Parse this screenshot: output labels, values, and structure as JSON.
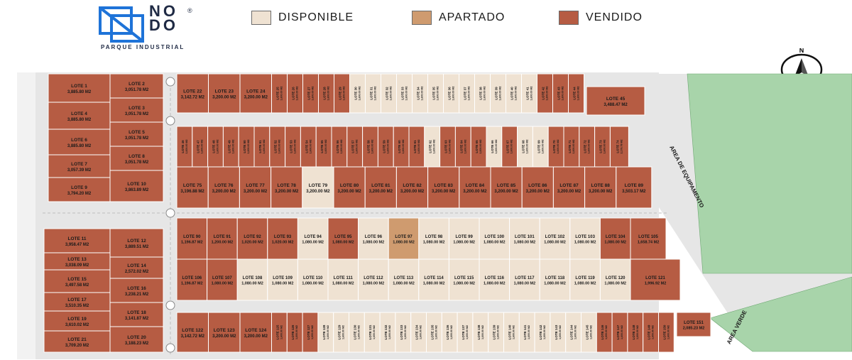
{
  "brand": {
    "name_line1": "NO",
    "name_line2": "DO",
    "registered": "®",
    "subtitle": "PARQUE INDUSTRIAL"
  },
  "legend": [
    {
      "label": "DISPONIBLE",
      "color": "#efe2d2"
    },
    {
      "label": "APARTADO",
      "color": "#cf9b6f"
    },
    {
      "label": "VENDIDO",
      "color": "#b65c43"
    }
  ],
  "compass": {
    "letter": "N"
  },
  "colors": {
    "sold": "#b65c43",
    "available": "#efe2d2",
    "reserved": "#cf9b6f",
    "green": "#a8d4aa",
    "road": "#e6e6e6"
  },
  "areas": {
    "equipamento": "AREA DE EQUIPAMENTO",
    "verde": "AREA VERDE"
  },
  "lots": {
    "left_top": [
      {
        "label": "LOTE 1",
        "area": "3,885.80 M2",
        "status": "sold"
      },
      {
        "label": "LOTE 2",
        "area": "3,051.78 M2",
        "status": "sold"
      },
      {
        "label": "LOTE 3",
        "area": "3,051.78 M2",
        "status": "sold"
      },
      {
        "label": "LOTE 4",
        "area": "3,885.80 M2",
        "status": "sold"
      },
      {
        "label": "LOTE 5",
        "area": "3,051.78 M2",
        "status": "sold"
      },
      {
        "label": "LOTE 6",
        "area": "3,885.80 M2",
        "status": "sold"
      },
      {
        "label": "LOTE 7",
        "area": "3,057.39 M2",
        "status": "sold"
      },
      {
        "label": "LOTE 8",
        "area": "3,051.78 M2",
        "status": "sold"
      },
      {
        "label": "LOTE 9",
        "area": "3,794.20 M2",
        "status": "sold"
      },
      {
        "label": "LOTE 10",
        "area": "3,863.89 M2",
        "status": "sold"
      }
    ],
    "left_bottom": [
      {
        "label": "LOTE 11",
        "area": "3,958.47 M2",
        "status": "sold"
      },
      {
        "label": "LOTE 12",
        "area": "3,889.51 M2",
        "status": "sold"
      },
      {
        "label": "LOTE 13",
        "area": "3,038.09 M2",
        "status": "sold"
      },
      {
        "label": "LOTE 14",
        "area": "2,572.02 M2",
        "status": "sold"
      },
      {
        "label": "LOTE 15",
        "area": "3,497.58 M2",
        "status": "sold"
      },
      {
        "label": "LOTE 16",
        "area": "3,238.21 M2",
        "status": "sold"
      },
      {
        "label": "LOTE 17",
        "area": "3,510.35 M2",
        "status": "sold"
      },
      {
        "label": "LOTE 18",
        "area": "3,141.87 M2",
        "status": "sold"
      },
      {
        "label": "LOTE 19",
        "area": "3,610.02 M2",
        "status": "sold"
      },
      {
        "label": "LOTE 20",
        "area": "3,188.23 M2",
        "status": "sold"
      },
      {
        "label": "LOTE 21",
        "area": "3,709.20 M2",
        "status": "sold"
      }
    ],
    "row1_big": [
      {
        "label": "LOTE 22",
        "area": "3,142.72 M2",
        "status": "sold"
      },
      {
        "label": "LOTE 23",
        "area": "3,200.00 M2",
        "status": "sold"
      },
      {
        "label": "LOTE 24",
        "area": "3,200.00 M2",
        "status": "sold"
      }
    ],
    "row1_small": [
      {
        "label": "LOTE 25",
        "area": "1,600.00 M2",
        "status": "sold"
      },
      {
        "label": "LOTE 26",
        "area": "1,600.00 M2",
        "status": "sold"
      },
      {
        "label": "LOTE 27",
        "area": "1,600.00 M2",
        "status": "sold"
      },
      {
        "label": "LOTE 28",
        "area": "1,600.00 M2",
        "status": "sold"
      },
      {
        "label": "LOTE 29",
        "area": "1,600.00 M2",
        "status": "sold"
      },
      {
        "label": "LOTE 30",
        "area": "1,600.00 M2",
        "status": "available"
      },
      {
        "label": "LOTE 31",
        "area": "1,600.00 M2",
        "status": "available"
      },
      {
        "label": "LOTE 32",
        "area": "1,600.00 M2",
        "status": "available"
      },
      {
        "label": "LOTE 33",
        "area": "1,600.00 M2",
        "status": "available"
      },
      {
        "label": "LOTE 34",
        "area": "1,600.00 M2",
        "status": "available"
      },
      {
        "label": "LOTE 35",
        "area": "1,600.00 M2",
        "status": "available"
      },
      {
        "label": "LOTE 36",
        "area": "1,600.00 M2",
        "status": "available"
      },
      {
        "label": "LOTE 37",
        "area": "1,600.00 M2",
        "status": "available"
      },
      {
        "label": "LOTE 38",
        "area": "1,600.00 M2",
        "status": "available"
      },
      {
        "label": "LOTE 39",
        "area": "1,600.00 M2",
        "status": "available"
      },
      {
        "label": "LOTE 40",
        "area": "1,600.00 M2",
        "status": "available"
      },
      {
        "label": "LOTE 41",
        "area": "1,600.00 M2",
        "status": "available"
      },
      {
        "label": "LOTE 42",
        "area": "1,600.00 M2",
        "status": "sold"
      },
      {
        "label": "LOTE 43",
        "area": "1,600.00 M2",
        "status": "sold"
      },
      {
        "label": "LOTE 44",
        "area": "1,600.00 M2",
        "status": "sold"
      }
    ],
    "lote45": {
      "label": "LOTE 45",
      "area": "3,488.47 M2",
      "status": "sold"
    },
    "row2_small": [
      {
        "label": "LOTE 46",
        "area": "1,600.00 M2",
        "status": "sold"
      },
      {
        "label": "LOTE 47",
        "area": "1,600.00 M2",
        "status": "sold"
      },
      {
        "label": "LOTE 48",
        "area": "1,600.00 M2",
        "status": "sold"
      },
      {
        "label": "LOTE 49",
        "area": "1,600.00 M2",
        "status": "sold"
      },
      {
        "label": "LOTE 50",
        "area": "1,600.00 M2",
        "status": "sold"
      },
      {
        "label": "LOTE 51",
        "area": "1,600.00 M2",
        "status": "sold"
      },
      {
        "label": "LOTE 52",
        "area": "1,600.00 M2",
        "status": "sold"
      },
      {
        "label": "LOTE 53",
        "area": "1,600.00 M2",
        "status": "sold"
      },
      {
        "label": "LOTE 54",
        "area": "1,600.00 M2",
        "status": "sold"
      },
      {
        "label": "LOTE 55",
        "area": "1,600.00 M2",
        "status": "sold"
      },
      {
        "label": "LOTE 56",
        "area": "1,600.00 M2",
        "status": "sold"
      },
      {
        "label": "LOTE 57",
        "area": "1,600.00 M2",
        "status": "sold"
      },
      {
        "label": "LOTE 58",
        "area": "1,600.00 M2",
        "status": "sold"
      },
      {
        "label": "LOTE 59",
        "area": "1,600.00 M2",
        "status": "sold"
      },
      {
        "label": "LOTE 60",
        "area": "1,600.00 M2",
        "status": "sold"
      },
      {
        "label": "LOTE 61",
        "area": "1,600.00 M2",
        "status": "sold"
      },
      {
        "label": "LOTE 62",
        "area": "1,600.00 M2",
        "status": "available"
      },
      {
        "label": "LOTE 63",
        "area": "1,600.00 M2",
        "status": "sold"
      },
      {
        "label": "LOTE 64",
        "area": "1,600.00 M2",
        "status": "sold"
      },
      {
        "label": "LOTE 65",
        "area": "1,600.00 M2",
        "status": "sold"
      },
      {
        "label": "LOTE 66",
        "area": "1,600.00 M2",
        "status": "available"
      },
      {
        "label": "LOTE 67",
        "area": "1,600.00 M2",
        "status": "sold"
      },
      {
        "label": "LOTE 68",
        "area": "1,600.00 M2",
        "status": "available"
      },
      {
        "label": "LOTE 69",
        "area": "1,600.00 M2",
        "status": "available"
      },
      {
        "label": "LOTE 70",
        "area": "1,600.00 M2",
        "status": "sold"
      },
      {
        "label": "LOTE 71",
        "area": "1,600.00 M2",
        "status": "sold"
      },
      {
        "label": "LOTE 72",
        "area": "1,600.00 M2",
        "status": "sold"
      },
      {
        "label": "LOTE 73",
        "area": "1,600.00 M2",
        "status": "sold"
      },
      {
        "label": "LOTE 74",
        "area": "2,176.78 M2",
        "status": "sold"
      }
    ],
    "row3_big": [
      {
        "label": "LOTE 75",
        "area": "3,196.88 M2",
        "status": "sold"
      },
      {
        "label": "LOTE 76",
        "area": "3,200.00 M2",
        "status": "sold"
      },
      {
        "label": "LOTE 77",
        "area": "3,200.00 M2",
        "status": "sold"
      },
      {
        "label": "LOTE 78",
        "area": "3,200.00 M2",
        "status": "sold"
      },
      {
        "label": "LOTE 79",
        "area": "3,200.00 M2",
        "status": "available"
      },
      {
        "label": "LOTE 80",
        "area": "3,200.00 M2",
        "status": "sold"
      },
      {
        "label": "LOTE 81",
        "area": "3,200.00 M2",
        "status": "sold"
      },
      {
        "label": "LOTE 82",
        "area": "3,200.00 M2",
        "status": "sold"
      },
      {
        "label": "LOTE 83",
        "area": "3,200.00 M2",
        "status": "sold"
      },
      {
        "label": "LOTE 84",
        "area": "3,200.00 M2",
        "status": "sold"
      },
      {
        "label": "LOTE 85",
        "area": "3,200.00 M2",
        "status": "sold"
      },
      {
        "label": "LOTE 86",
        "area": "3,200.00 M2",
        "status": "sold"
      },
      {
        "label": "LOTE 87",
        "area": "3,200.00 M2",
        "status": "sold"
      },
      {
        "label": "LOTE 88",
        "area": "3,200.00 M2",
        "status": "sold"
      },
      {
        "label": "LOTE 89",
        "area": "3,503.17 M2",
        "status": "sold"
      }
    ],
    "row4": [
      {
        "label": "LOTE 90",
        "area": "1,196.87 M2",
        "status": "sold"
      },
      {
        "label": "LOTE 91",
        "area": "1,200.00 M2",
        "status": "sold"
      },
      {
        "label": "LOTE 92",
        "area": "1,020.00 M2",
        "status": "sold"
      },
      {
        "label": "LOTE 93",
        "area": "1,020.00 M2",
        "status": "sold"
      },
      {
        "label": "LOTE 94",
        "area": "1,080.00 M2",
        "status": "available"
      },
      {
        "label": "LOTE 95",
        "area": "1,080.00 M2",
        "status": "sold"
      },
      {
        "label": "LOTE 96",
        "area": "1,080.00 M2",
        "status": "available"
      },
      {
        "label": "LOTE 97",
        "area": "1,080.00 M2",
        "status": "reserved"
      },
      {
        "label": "LOTE 98",
        "area": "1,080.00 M2",
        "status": "available"
      },
      {
        "label": "LOTE 99",
        "area": "1,080.00 M2",
        "status": "available"
      },
      {
        "label": "LOTE 100",
        "area": "1,080.00 M2",
        "status": "available"
      },
      {
        "label": "LOTE 101",
        "area": "1,080.00 M2",
        "status": "available"
      },
      {
        "label": "LOTE 102",
        "area": "1,080.00 M2",
        "status": "available"
      },
      {
        "label": "LOTE 103",
        "area": "1,080.00 M2",
        "status": "available"
      },
      {
        "label": "LOTE 104",
        "area": "1,080.00 M2",
        "status": "sold"
      },
      {
        "label": "LOTE 105",
        "area": "1,658.74 M2",
        "status": "sold"
      }
    ],
    "row5": [
      {
        "label": "LOTE 106",
        "area": "1,196.87 M2",
        "status": "sold"
      },
      {
        "label": "LOTE 107",
        "area": "1,080.00 M2",
        "status": "sold"
      },
      {
        "label": "LOTE 108",
        "area": "1,080.00 M2",
        "status": "available"
      },
      {
        "label": "LOTE 109",
        "area": "1,080.00 M2",
        "status": "available"
      },
      {
        "label": "LOTE 110",
        "area": "1,080.00 M2",
        "status": "available"
      },
      {
        "label": "LOTE 111",
        "area": "1,080.00 M2",
        "status": "available"
      },
      {
        "label": "LOTE 112",
        "area": "1,080.00 M2",
        "status": "available"
      },
      {
        "label": "LOTE 113",
        "area": "1,080.00 M2",
        "status": "available"
      },
      {
        "label": "LOTE 114",
        "area": "1,080.00 M2",
        "status": "available"
      },
      {
        "label": "LOTE 115",
        "area": "1,080.00 M2",
        "status": "available"
      },
      {
        "label": "LOTE 116",
        "area": "1,080.00 M2",
        "status": "available"
      },
      {
        "label": "LOTE 117",
        "area": "1,080.00 M2",
        "status": "available"
      },
      {
        "label": "LOTE 118",
        "area": "1,080.00 M2",
        "status": "available"
      },
      {
        "label": "LOTE 119",
        "area": "1,080.00 M2",
        "status": "available"
      },
      {
        "label": "LOTE 120",
        "area": "1,080.00 M2",
        "status": "available"
      },
      {
        "label": "LOTE 121",
        "area": "1,996.92 M2",
        "status": "sold"
      }
    ],
    "row6_big": [
      {
        "label": "LOTE 122",
        "area": "3,142.72 M2",
        "status": "sold"
      },
      {
        "label": "LOTE 123",
        "area": "3,200.00 M2",
        "status": "sold"
      },
      {
        "label": "LOTE 124",
        "area": "3,200.00 M2",
        "status": "sold"
      }
    ],
    "row6_small": [
      {
        "label": "LOTE 125",
        "area": "1,600.00 M2",
        "status": "sold"
      },
      {
        "label": "LOTE 126",
        "area": "1,600.00 M2",
        "status": "sold"
      },
      {
        "label": "LOTE 127",
        "area": "1,600.00 M2",
        "status": "sold"
      },
      {
        "label": "LOTE 128",
        "area": "1,600.00 M2",
        "status": "available"
      },
      {
        "label": "LOTE 129",
        "area": "1,600.00 M2",
        "status": "available"
      },
      {
        "label": "LOTE 130",
        "area": "1,600.00 M2",
        "status": "available"
      },
      {
        "label": "LOTE 131",
        "area": "1,600.00 M2",
        "status": "available"
      },
      {
        "label": "LOTE 132",
        "area": "1,600.00 M2",
        "status": "available"
      },
      {
        "label": "LOTE 133",
        "area": "1,600.00 M2",
        "status": "available"
      },
      {
        "label": "LOTE 134",
        "area": "1,600.00 M2",
        "status": "available"
      },
      {
        "label": "LOTE 135",
        "area": "1,600.00 M2",
        "status": "available"
      },
      {
        "label": "LOTE 136",
        "area": "1,600.00 M2",
        "status": "available"
      },
      {
        "label": "LOTE 137",
        "area": "1,600.00 M2",
        "status": "available"
      },
      {
        "label": "LOTE 138",
        "area": "1,600.00 M2",
        "status": "available"
      },
      {
        "label": "LOTE 139",
        "area": "1,600.00 M2",
        "status": "available"
      },
      {
        "label": "LOTE 140",
        "area": "1,600.00 M2",
        "status": "available"
      },
      {
        "label": "LOTE 141",
        "area": "1,600.00 M2",
        "status": "available"
      },
      {
        "label": "LOTE 142",
        "area": "1,600.00 M2",
        "status": "available"
      },
      {
        "label": "LOTE 143",
        "area": "1,600.00 M2",
        "status": "available"
      },
      {
        "label": "LOTE 144",
        "area": "1,600.00 M2",
        "status": "available"
      },
      {
        "label": "LOTE 145",
        "area": "1,600.00 M2",
        "status": "available"
      },
      {
        "label": "LOTE 146",
        "area": "1,600.00 M2",
        "status": "sold"
      },
      {
        "label": "LOTE 147",
        "area": "1,600.00 M2",
        "status": "sold"
      },
      {
        "label": "LOTE 148",
        "area": "1,600.00 M2",
        "status": "sold"
      },
      {
        "label": "LOTE 149",
        "area": "1,600.00 M2",
        "status": "sold"
      },
      {
        "label": "LOTE 150",
        "area": "1,600.00 M2",
        "status": "sold"
      }
    ],
    "lote151": {
      "label": "LOTE 151",
      "area": "2,085.23 M2",
      "status": "sold"
    }
  }
}
